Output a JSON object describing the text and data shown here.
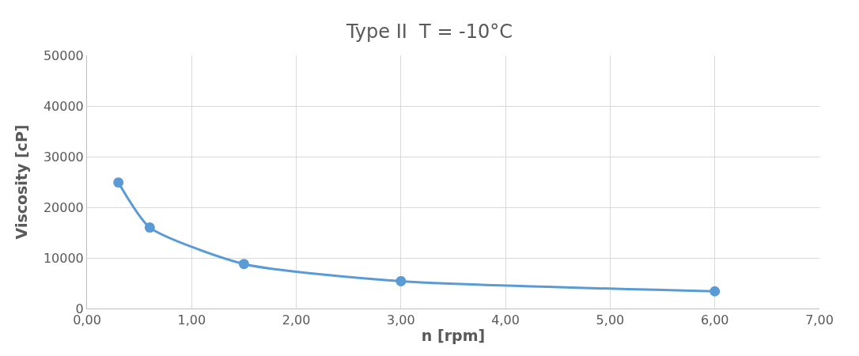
{
  "chart_data": {
    "type": "line",
    "title": "Type II  T = -10°C",
    "xlabel": "n [rpm]",
    "ylabel": "Viscosity [cP]",
    "x": [
      0.3,
      0.6,
      1.5,
      3.0,
      6.0
    ],
    "series": [
      {
        "color": "#5b9bd5",
        "values": [
          24900,
          16000,
          8800,
          5400,
          3400
        ]
      }
    ],
    "xlim": [
      0,
      7
    ],
    "xticks": [
      {
        "value": 0,
        "label": "0,00"
      },
      {
        "value": 1,
        "label": "1,00"
      },
      {
        "value": 2,
        "label": "2,00"
      },
      {
        "value": 3,
        "label": "3,00"
      },
      {
        "value": 4,
        "label": "4,00"
      },
      {
        "value": 5,
        "label": "5,00"
      },
      {
        "value": 6,
        "label": "6,00"
      },
      {
        "value": 7,
        "label": "7,00"
      }
    ],
    "ylim": [
      0,
      50000
    ],
    "yticks": [
      0,
      10000,
      20000,
      30000,
      40000,
      50000
    ],
    "grid": true,
    "marker": "circle",
    "line_style": "solid",
    "legend": false
  }
}
